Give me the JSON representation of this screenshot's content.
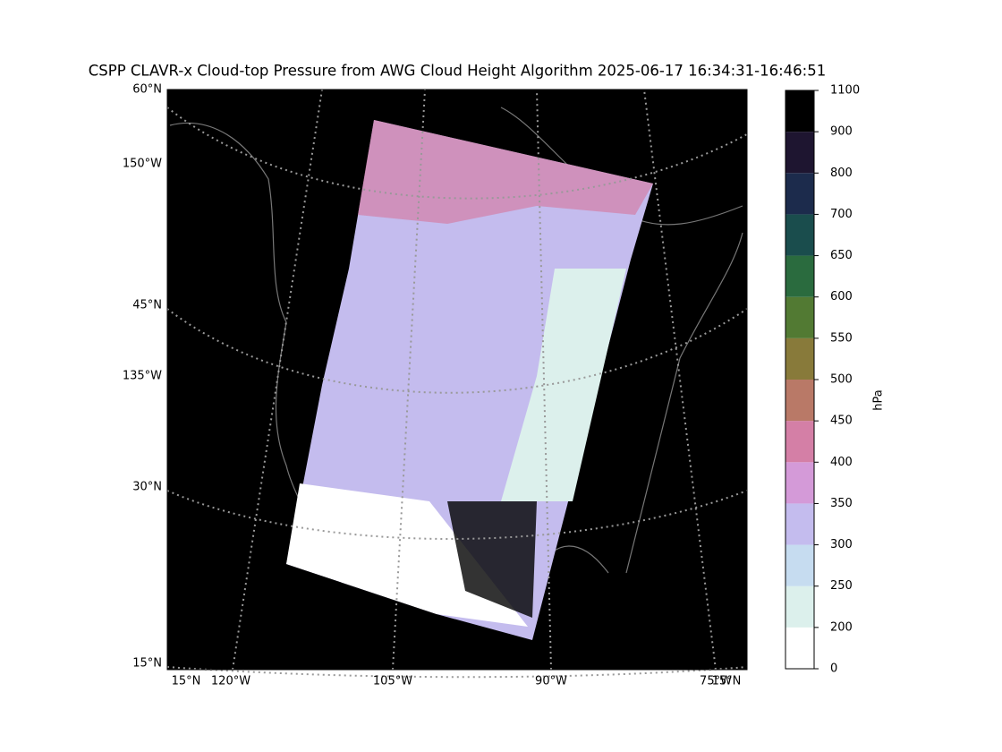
{
  "title": "CSPP CLAVR-x Cloud-top Pressure from AWG Cloud Height Algorithm 2025-06-17 16:34:31-16:46:51",
  "map": {
    "left_labels": [
      "60°N",
      "150°W",
      "45°N",
      "135°W",
      "30°N",
      "15°N"
    ],
    "bottom_labels": [
      "15°N",
      "120°W",
      "105°W",
      "90°W",
      "75°W",
      "15°N"
    ]
  },
  "colorbar": {
    "label": "hPa",
    "ticks": [
      0,
      200,
      250,
      300,
      350,
      400,
      450,
      500,
      550,
      600,
      650,
      700,
      800,
      900,
      1100
    ],
    "colors": [
      "#ffffff",
      "#dcf0ec",
      "#c6dcf0",
      "#c4bcee",
      "#d49ad8",
      "#d47fa6",
      "#b97967",
      "#887a3a",
      "#527a33",
      "#2a6b3e",
      "#1a4d4d",
      "#1c2b4c",
      "#1e1530",
      "#000000"
    ]
  }
}
